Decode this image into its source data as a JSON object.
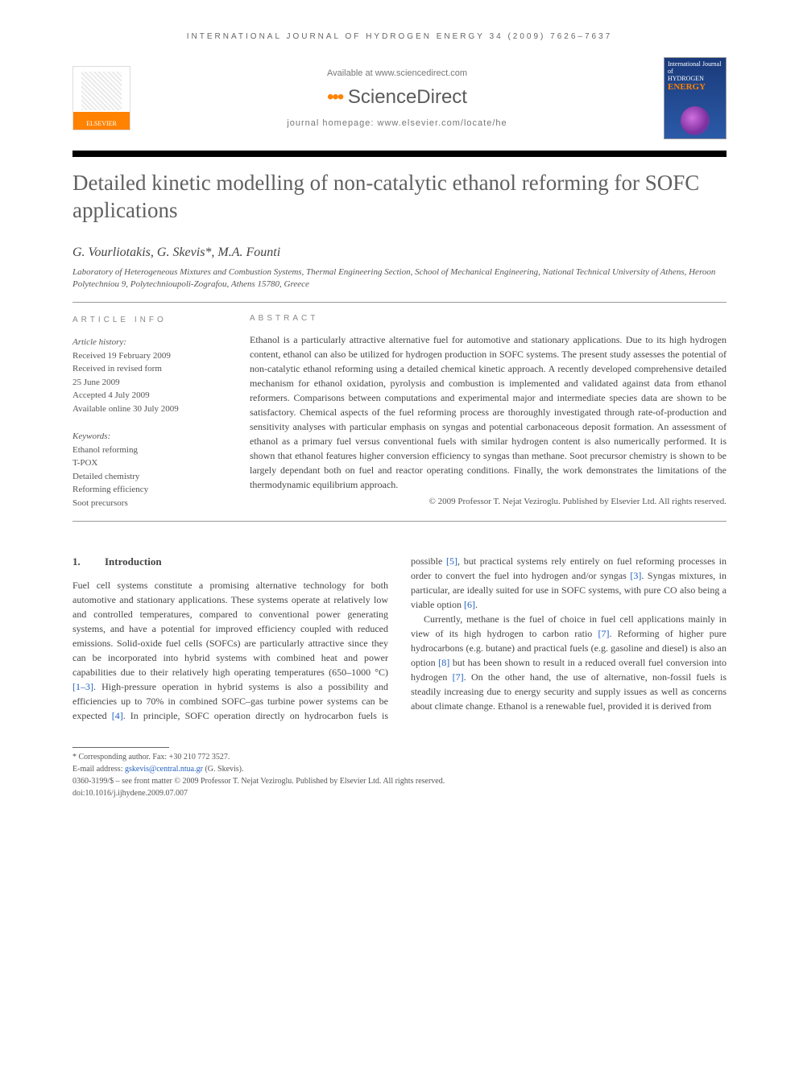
{
  "running_head": "INTERNATIONAL JOURNAL OF HYDROGEN ENERGY 34 (2009) 7626–7637",
  "header": {
    "available_at": "Available at www.sciencedirect.com",
    "brand": "ScienceDirect",
    "homepage": "journal homepage: www.elsevier.com/locate/he",
    "elsevier_label": "ELSEVIER",
    "cover_top": "International Journal of",
    "cover_mid": "HYDROGEN",
    "cover_energy": "ENERGY"
  },
  "title": "Detailed kinetic modelling of non-catalytic ethanol reforming for SOFC applications",
  "authors": "G. Vourliotakis, G. Skevis*, M.A. Founti",
  "affiliation": "Laboratory of Heterogeneous Mixtures and Combustion Systems, Thermal Engineering Section, School of Mechanical Engineering, National Technical University of Athens, Heroon Polytechniou 9, Polytechnioupoli-Zografou, Athens 15780, Greece",
  "article_info_label": "ARTICLE INFO",
  "abstract_label": "ABSTRACT",
  "history": {
    "heading": "Article history:",
    "received": "Received 19 February 2009",
    "revised1": "Received in revised form",
    "revised2": "25 June 2009",
    "accepted": "Accepted 4 July 2009",
    "online": "Available online 30 July 2009"
  },
  "keywords_label": "Keywords:",
  "keywords": [
    "Ethanol reforming",
    "T-POX",
    "Detailed chemistry",
    "Reforming efficiency",
    "Soot precursors"
  ],
  "abstract": "Ethanol is a particularly attractive alternative fuel for automotive and stationary applications. Due to its high hydrogen content, ethanol can also be utilized for hydrogen production in SOFC systems. The present study assesses the potential of non-catalytic ethanol reforming using a detailed chemical kinetic approach. A recently developed comprehensive detailed mechanism for ethanol oxidation, pyrolysis and combustion is implemented and validated against data from ethanol reformers. Comparisons between computations and experimental major and intermediate species data are shown to be satisfactory. Chemical aspects of the fuel reforming process are thoroughly investigated through rate-of-production and sensitivity analyses with particular emphasis on syngas and potential carbonaceous deposit formation. An assessment of ethanol as a primary fuel versus conventional fuels with similar hydrogen content is also numerically performed. It is shown that ethanol features higher conversion efficiency to syngas than methane. Soot precursor chemistry is shown to be largely dependant both on fuel and reactor operating conditions. Finally, the work demonstrates the limitations of the thermodynamic equilibrium approach.",
  "copyright": "© 2009 Professor T. Nejat Veziroglu. Published by Elsevier Ltd. All rights reserved.",
  "section1": {
    "num": "1.",
    "heading": "Introduction",
    "p1a": "Fuel cell systems constitute a promising alternative technology for both automotive and stationary applications. These systems operate at relatively low and controlled temperatures, compared to conventional power generating systems, and have a potential for improved efficiency coupled with reduced emissions. Solid-oxide fuel cells (SOFCs) are particularly attractive since they can be incorporated into hybrid systems with combined heat and power capabilities due to their relatively high operating temperatures (650–1000 °C) ",
    "ref1": "[1–3]",
    "p1b": ". High-pressure operation in hybrid systems is also a possibility and efficiencies up to 70% in combined SOFC–gas turbine power systems can be expected ",
    "ref2": "[4]",
    "p1c": ". In principle, SOFC",
    "p2a": "operation directly on hydrocarbon fuels is possible ",
    "ref3": "[5]",
    "p2b": ", but practical systems rely entirely on fuel reforming processes in order to convert the fuel into hydrogen and/or syngas ",
    "ref4": "[3]",
    "p2c": ". Syngas mixtures, in particular, are ideally suited for use in SOFC systems, with pure CO also being a viable option ",
    "ref5": "[6]",
    "p2d": ".",
    "p3a": "Currently, methane is the fuel of choice in fuel cell applications mainly in view of its high hydrogen to carbon ratio ",
    "ref6": "[7]",
    "p3b": ". Reforming of higher pure hydrocarbons (e.g. butane) and practical fuels (e.g. gasoline and diesel) is also an option ",
    "ref7": "[8]",
    "p3c": " but has been shown to result in a reduced overall fuel conversion into hydrogen ",
    "ref8": "[7]",
    "p3d": ". On the other hand, the use of alternative, non-fossil fuels is steadily increasing due to energy security and supply issues as well as concerns about climate change. Ethanol is a renewable fuel, provided it is derived from"
  },
  "footer": {
    "corr": "* Corresponding author. Fax: +30 210 772 3527.",
    "email_label": "E-mail address: ",
    "email": "gskevis@central.ntua.gr",
    "email_suffix": " (G. Skevis).",
    "front_matter": "0360-3199/$ – see front matter © 2009 Professor T. Nejat Veziroglu. Published by Elsevier Ltd. All rights reserved.",
    "doi": "doi:10.1016/j.ijhydene.2009.07.007"
  },
  "colors": {
    "title_gray": "#606060",
    "link_blue": "#2060c0",
    "elsevier_orange": "#ff8200",
    "cover_blue": "#1a3a7a"
  }
}
